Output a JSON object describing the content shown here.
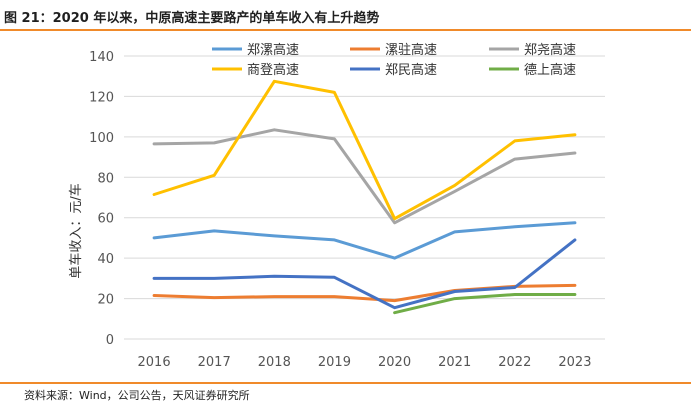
{
  "figure": {
    "title": "图 21：2020 年以来，中原高速主要路产的单车收入有上升趋势",
    "source": "资料来源：Wind，公司公告，天风证券研究所"
  },
  "colors": {
    "rule": "#f08a2a",
    "grid": "#d9d9d9"
  },
  "chart_data": {
    "type": "line",
    "title": "",
    "xlabel": "",
    "ylabel": "单车收入：元/车",
    "ylim": [
      0,
      140
    ],
    "yticks": [
      0,
      20,
      40,
      60,
      80,
      100,
      120,
      140
    ],
    "grid": true,
    "legend_position": "top",
    "categories": [
      "2016",
      "2017",
      "2018",
      "2019",
      "2020",
      "2021",
      "2022",
      "2023"
    ],
    "series": [
      {
        "name": "郑漯高速",
        "color": "#5b9bd5",
        "values": [
          50,
          53.5,
          51,
          49,
          40,
          53,
          55.5,
          57.5
        ]
      },
      {
        "name": "漯驻高速",
        "color": "#ed7d31",
        "values": [
          21.5,
          20.5,
          21,
          21,
          19,
          24,
          26,
          26.5
        ]
      },
      {
        "name": "郑尧高速",
        "color": "#a5a5a5",
        "values": [
          96.5,
          97,
          103.5,
          99,
          57.5,
          73,
          89,
          92
        ]
      },
      {
        "name": "商登高速",
        "color": "#ffc000",
        "values": [
          71.5,
          81,
          127.5,
          122,
          59.5,
          76,
          98,
          101
        ]
      },
      {
        "name": "郑民高速",
        "color": "#4472c4",
        "values": [
          30,
          30,
          31,
          30.5,
          15.5,
          23.5,
          25.5,
          49
        ]
      },
      {
        "name": "德上高速",
        "color": "#70ad47",
        "values": [
          null,
          null,
          null,
          null,
          13,
          20,
          22,
          22
        ]
      }
    ]
  }
}
